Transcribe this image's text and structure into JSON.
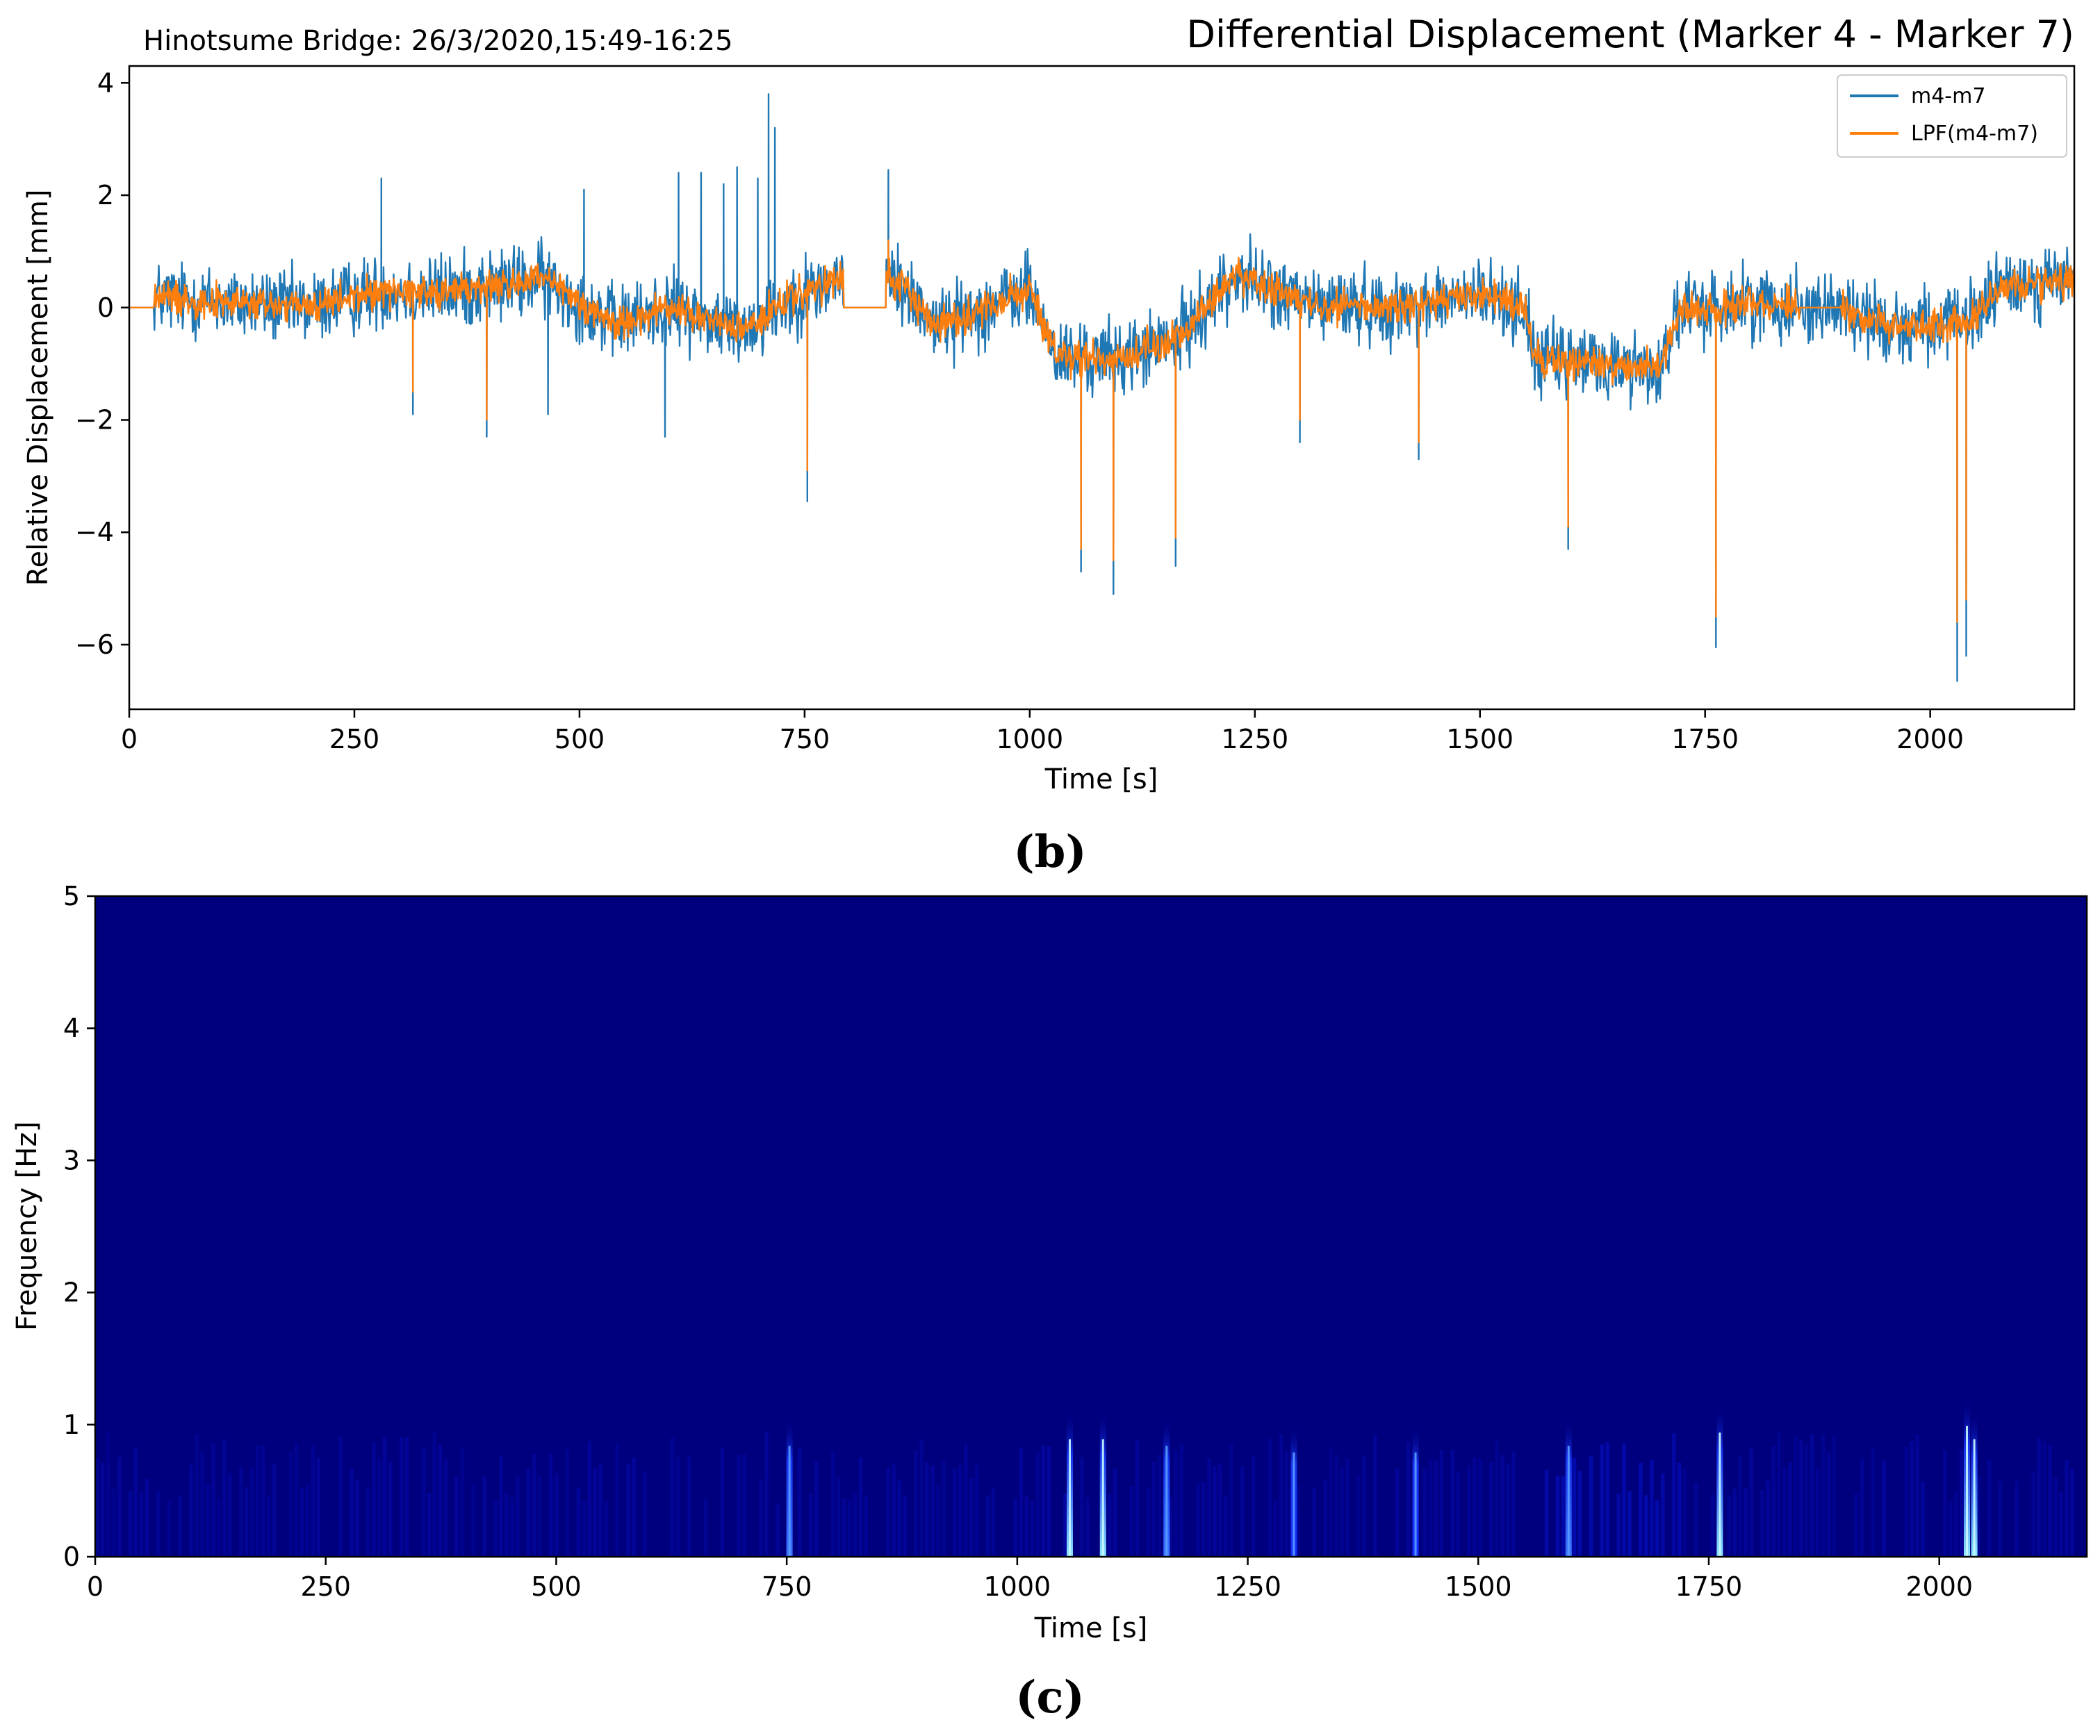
{
  "colors": {
    "series_raw": "#1f77b4",
    "series_lpf": "#ff7f0e",
    "spectrogram_bg": "#00007f",
    "spectrogram_hot": "#8fe8ff"
  },
  "chart_data": [
    {
      "panel": "b",
      "type": "line",
      "title": "Differential Displacement (Marker 4 - Marker 7)",
      "subtitle": "Hinotsume Bridge: 26/3/2020,15:49-16:25",
      "xlabel": "Time [s]",
      "ylabel": "Relative Displacement [mm]",
      "xlim": [
        0,
        2160
      ],
      "ylim": [
        -7.15,
        4.3
      ],
      "x_ticks": [
        0,
        250,
        500,
        750,
        1000,
        1250,
        1500,
        1750,
        2000
      ],
      "y_ticks": [
        -6,
        -4,
        -2,
        0,
        2,
        4
      ],
      "legend": "top-right",
      "grid": false,
      "series": [
        {
          "name": "m4-m7",
          "color": "#1f77b4",
          "noise_amplitude": 0.75,
          "zero_intervals": [
            [
              0,
              28
            ],
            [
              793,
              840
            ]
          ],
          "baseline": [
            {
              "x": 28,
              "y": 0.2
            },
            {
              "x": 100,
              "y": 0.1
            },
            {
              "x": 200,
              "y": 0.0
            },
            {
              "x": 280,
              "y": 0.3
            },
            {
              "x": 360,
              "y": 0.3
            },
            {
              "x": 460,
              "y": 0.5
            },
            {
              "x": 540,
              "y": -0.3
            },
            {
              "x": 600,
              "y": 0.0
            },
            {
              "x": 680,
              "y": -0.4
            },
            {
              "x": 740,
              "y": 0.2
            },
            {
              "x": 792,
              "y": 0.5
            },
            {
              "x": 841,
              "y": 0.6
            },
            {
              "x": 900,
              "y": -0.3
            },
            {
              "x": 1000,
              "y": 0.3
            },
            {
              "x": 1030,
              "y": -0.9
            },
            {
              "x": 1100,
              "y": -0.9
            },
            {
              "x": 1160,
              "y": -0.6
            },
            {
              "x": 1230,
              "y": 0.6
            },
            {
              "x": 1300,
              "y": 0.1
            },
            {
              "x": 1400,
              "y": 0.0
            },
            {
              "x": 1500,
              "y": 0.2
            },
            {
              "x": 1550,
              "y": 0.0
            },
            {
              "x": 1560,
              "y": -0.9
            },
            {
              "x": 1700,
              "y": -1.1
            },
            {
              "x": 1720,
              "y": -0.1
            },
            {
              "x": 1800,
              "y": 0.1
            },
            {
              "x": 1900,
              "y": 0.0
            },
            {
              "x": 1950,
              "y": -0.3
            },
            {
              "x": 2040,
              "y": -0.3
            },
            {
              "x": 2080,
              "y": 0.4
            },
            {
              "x": 2160,
              "y": 0.5
            }
          ],
          "spikes": [
            {
              "x": 280,
              "y": 2.3
            },
            {
              "x": 315,
              "y": -1.9
            },
            {
              "x": 397,
              "y": -2.3
            },
            {
              "x": 465,
              "y": -1.9
            },
            {
              "x": 505,
              "y": 2.1
            },
            {
              "x": 595,
              "y": -2.3
            },
            {
              "x": 610,
              "y": 2.4
            },
            {
              "x": 635,
              "y": 2.4
            },
            {
              "x": 660,
              "y": 2.2
            },
            {
              "x": 675,
              "y": 2.5
            },
            {
              "x": 698,
              "y": 2.3
            },
            {
              "x": 710,
              "y": 3.8
            },
            {
              "x": 717,
              "y": 3.2
            },
            {
              "x": 753,
              "y": -3.45
            },
            {
              "x": 843,
              "y": 2.45
            },
            {
              "x": 1057,
              "y": -4.7
            },
            {
              "x": 1093,
              "y": -5.1
            },
            {
              "x": 1162,
              "y": -4.6
            },
            {
              "x": 1300,
              "y": -2.4
            },
            {
              "x": 1432,
              "y": -2.7
            },
            {
              "x": 1598,
              "y": -4.3
            },
            {
              "x": 1762,
              "y": -6.05
            },
            {
              "x": 2030,
              "y": -6.65
            },
            {
              "x": 2040,
              "y": -6.2
            }
          ]
        },
        {
          "name": "LPF(m4-m7)",
          "color": "#ff7f0e",
          "noise_amplitude": 0.35,
          "zero_intervals": [
            [
              0,
              28
            ],
            [
              793,
              840
            ],
            [
              1855,
              1900
            ]
          ],
          "spikes": [
            {
              "x": 315,
              "y": -1.5
            },
            {
              "x": 397,
              "y": -2.0
            },
            {
              "x": 753,
              "y": -2.9
            },
            {
              "x": 843,
              "y": 1.2
            },
            {
              "x": 1057,
              "y": -4.3
            },
            {
              "x": 1093,
              "y": -4.5
            },
            {
              "x": 1162,
              "y": -4.1
            },
            {
              "x": 1300,
              "y": -2.0
            },
            {
              "x": 1432,
              "y": -2.4
            },
            {
              "x": 1598,
              "y": -3.9
            },
            {
              "x": 1762,
              "y": -5.5
            },
            {
              "x": 2030,
              "y": -5.6
            },
            {
              "x": 2040,
              "y": -5.2
            }
          ]
        }
      ]
    },
    {
      "panel": "c",
      "type": "heatmap",
      "xlabel": "Time [s]",
      "ylabel": "Frequency [Hz]",
      "xlim": [
        0,
        2160
      ],
      "ylim": [
        0,
        5
      ],
      "x_ticks": [
        0,
        250,
        500,
        750,
        1000,
        1250,
        1500,
        1750,
        2000
      ],
      "y_ticks": [
        0,
        1,
        2,
        3,
        4,
        5
      ],
      "colormap": "jet",
      "grid": false,
      "energy_band_hz": [
        0,
        1.1
      ],
      "bright_columns": [
        {
          "x": 753,
          "top_hz": 1.05,
          "intensity": 0.55
        },
        {
          "x": 1057,
          "top_hz": 1.1,
          "intensity": 0.85
        },
        {
          "x": 1093,
          "top_hz": 1.1,
          "intensity": 0.85
        },
        {
          "x": 1162,
          "top_hz": 1.05,
          "intensity": 0.7
        },
        {
          "x": 1300,
          "top_hz": 1.0,
          "intensity": 0.4
        },
        {
          "x": 1432,
          "top_hz": 1.0,
          "intensity": 0.45
        },
        {
          "x": 1598,
          "top_hz": 1.05,
          "intensity": 0.75
        },
        {
          "x": 1762,
          "top_hz": 1.15,
          "intensity": 1.0
        },
        {
          "x": 2030,
          "top_hz": 1.2,
          "intensity": 1.0
        },
        {
          "x": 2038,
          "top_hz": 1.1,
          "intensity": 0.9
        }
      ]
    }
  ],
  "captions": {
    "panel_b": "(b)",
    "panel_c": "(c)"
  }
}
